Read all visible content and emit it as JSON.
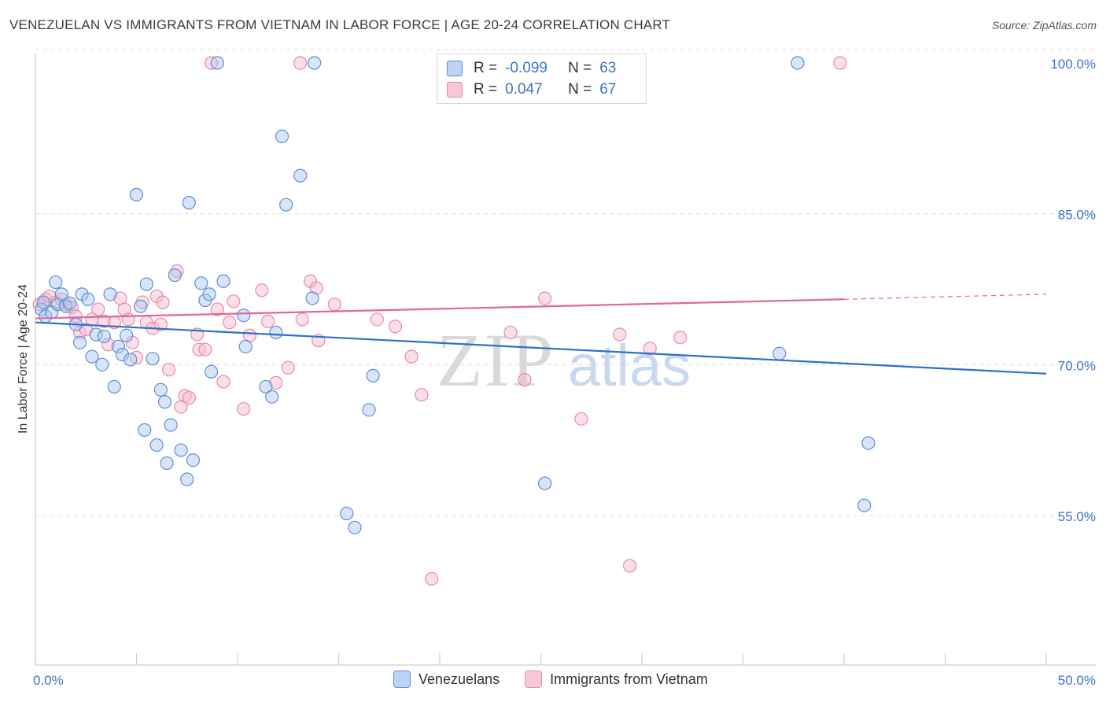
{
  "title": "VENEZUELAN VS IMMIGRANTS FROM VIETNAM IN LABOR FORCE | AGE 20-24 CORRELATION CHART",
  "source": "Source: ZipAtlas.com",
  "watermark": {
    "zip": "ZIP",
    "atlas": "atlas"
  },
  "legend": {
    "rows": [
      {
        "r_label": "R =",
        "r_value": "-0.099",
        "n_label": "N =",
        "n_value": "63"
      },
      {
        "r_label": "R =",
        "r_value": "0.047",
        "n_label": "N =",
        "n_value": "67"
      }
    ]
  },
  "bottom_legend": [
    "Venezuelans",
    "Immigrants from Vietnam"
  ],
  "colors": {
    "blue_fill": "#a9c6ef",
    "blue_stroke": "#5b8fd6",
    "blue_line": "#2e6fca",
    "pink_fill": "#f6b7cb",
    "pink_stroke": "#e68aa9",
    "pink_line": "#e0689a",
    "grid": "#dcdcdc",
    "tick_text": "#3b73c8"
  },
  "chart_data": {
    "type": "scatter",
    "title": "VENEZUELAN VS IMMIGRANTS FROM VIETNAM IN LABOR FORCE | AGE 20-24 CORRELATION CHART",
    "xlabel": "",
    "ylabel": "In Labor Force | Age 20-24",
    "xlim": [
      0,
      50
    ],
    "ylim": [
      40,
      102
    ],
    "x_tick_labels": [
      "0.0%",
      "50.0%"
    ],
    "y_ticks": [
      55,
      70,
      85,
      100
    ],
    "y_tick_labels": [
      "55.0%",
      "70.0%",
      "85.0%",
      "100.0%"
    ],
    "grid": true,
    "series": [
      {
        "name": "Venezuelans",
        "trend": {
          "x": [
            0,
            50
          ],
          "y": [
            74.2,
            69.1
          ]
        },
        "points": [
          [
            0.3,
            75.5
          ],
          [
            0.4,
            76.2
          ],
          [
            0.5,
            74.8
          ],
          [
            0.8,
            75.2
          ],
          [
            1.0,
            78.2
          ],
          [
            1.1,
            76.0
          ],
          [
            1.3,
            77.0
          ],
          [
            1.5,
            75.8
          ],
          [
            1.7,
            76.1
          ],
          [
            2.0,
            74.0
          ],
          [
            2.2,
            72.2
          ],
          [
            2.3,
            77.0
          ],
          [
            2.6,
            76.5
          ],
          [
            2.8,
            70.8
          ],
          [
            3.0,
            73.0
          ],
          [
            3.3,
            70.0
          ],
          [
            3.4,
            72.8
          ],
          [
            3.7,
            77.0
          ],
          [
            3.9,
            67.8
          ],
          [
            4.1,
            71.8
          ],
          [
            4.3,
            71.0
          ],
          [
            4.5,
            72.9
          ],
          [
            4.7,
            70.5
          ],
          [
            5.0,
            86.9
          ],
          [
            5.2,
            75.8
          ],
          [
            5.4,
            63.5
          ],
          [
            5.5,
            78.0
          ],
          [
            5.8,
            70.6
          ],
          [
            6.0,
            62.0
          ],
          [
            6.2,
            67.5
          ],
          [
            6.4,
            66.3
          ],
          [
            6.5,
            60.2
          ],
          [
            6.7,
            64.0
          ],
          [
            6.9,
            78.9
          ],
          [
            7.2,
            61.5
          ],
          [
            7.5,
            58.6
          ],
          [
            7.6,
            86.1
          ],
          [
            7.8,
            60.5
          ],
          [
            8.2,
            78.1
          ],
          [
            8.4,
            76.4
          ],
          [
            8.6,
            77.0
          ],
          [
            8.7,
            69.3
          ],
          [
            9.0,
            100.0
          ],
          [
            9.3,
            78.3
          ],
          [
            10.3,
            74.9
          ],
          [
            10.4,
            71.8
          ],
          [
            11.4,
            67.8
          ],
          [
            11.7,
            66.8
          ],
          [
            11.9,
            73.2
          ],
          [
            12.2,
            92.7
          ],
          [
            12.4,
            85.9
          ],
          [
            13.1,
            88.8
          ],
          [
            13.7,
            76.6
          ],
          [
            13.8,
            100.0
          ],
          [
            15.4,
            55.2
          ],
          [
            15.8,
            53.8
          ],
          [
            16.5,
            65.5
          ],
          [
            16.7,
            68.9
          ],
          [
            25.2,
            58.2
          ],
          [
            36.8,
            71.1
          ],
          [
            37.7,
            100.0
          ],
          [
            41.2,
            62.2
          ],
          [
            41.0,
            56.0
          ]
        ]
      },
      {
        "name": "Immigrants from Vietnam",
        "trend": {
          "x": [
            0,
            40
          ],
          "y": [
            74.6,
            76.5
          ]
        },
        "trend_dashed": {
          "x": [
            40,
            50
          ],
          "y": [
            76.5,
            77.0
          ]
        },
        "points": [
          [
            0.2,
            76.0
          ],
          [
            0.5,
            76.5
          ],
          [
            0.7,
            76.8
          ],
          [
            1.0,
            76.2
          ],
          [
            1.3,
            76.5
          ],
          [
            1.5,
            76.0
          ],
          [
            1.8,
            75.7
          ],
          [
            2.0,
            74.8
          ],
          [
            2.2,
            73.2
          ],
          [
            2.5,
            73.5
          ],
          [
            2.8,
            74.5
          ],
          [
            3.1,
            75.5
          ],
          [
            3.4,
            74.3
          ],
          [
            3.6,
            72.0
          ],
          [
            3.9,
            74.2
          ],
          [
            4.2,
            76.6
          ],
          [
            4.4,
            75.5
          ],
          [
            4.6,
            74.5
          ],
          [
            4.8,
            72.2
          ],
          [
            5.0,
            70.7
          ],
          [
            5.3,
            76.2
          ],
          [
            5.5,
            74.2
          ],
          [
            5.8,
            73.6
          ],
          [
            6.0,
            76.8
          ],
          [
            6.2,
            74.0
          ],
          [
            6.3,
            76.2
          ],
          [
            6.6,
            69.5
          ],
          [
            7.0,
            79.3
          ],
          [
            7.2,
            65.8
          ],
          [
            7.4,
            66.9
          ],
          [
            7.6,
            66.7
          ],
          [
            8.0,
            73.0
          ],
          [
            8.1,
            71.5
          ],
          [
            8.4,
            71.5
          ],
          [
            8.7,
            100.0
          ],
          [
            9.0,
            75.5
          ],
          [
            9.3,
            68.3
          ],
          [
            9.6,
            74.2
          ],
          [
            9.8,
            76.3
          ],
          [
            10.3,
            65.6
          ],
          [
            10.6,
            72.9
          ],
          [
            11.2,
            77.4
          ],
          [
            11.5,
            74.3
          ],
          [
            11.9,
            68.2
          ],
          [
            12.5,
            69.7
          ],
          [
            13.1,
            100.0
          ],
          [
            13.2,
            74.5
          ],
          [
            13.6,
            78.3
          ],
          [
            13.9,
            77.6
          ],
          [
            14.0,
            72.4
          ],
          [
            14.8,
            76.0
          ],
          [
            16.9,
            74.5
          ],
          [
            17.8,
            73.8
          ],
          [
            18.6,
            70.8
          ],
          [
            19.1,
            67.0
          ],
          [
            19.6,
            48.7
          ],
          [
            21.0,
            100.0
          ],
          [
            21.6,
            100.0
          ],
          [
            23.5,
            73.2
          ],
          [
            24.2,
            68.5
          ],
          [
            25.2,
            76.6
          ],
          [
            27.0,
            64.6
          ],
          [
            28.9,
            73.0
          ],
          [
            29.4,
            50.0
          ],
          [
            30.4,
            71.6
          ],
          [
            31.9,
            72.7
          ],
          [
            39.8,
            100.0
          ]
        ]
      }
    ]
  }
}
